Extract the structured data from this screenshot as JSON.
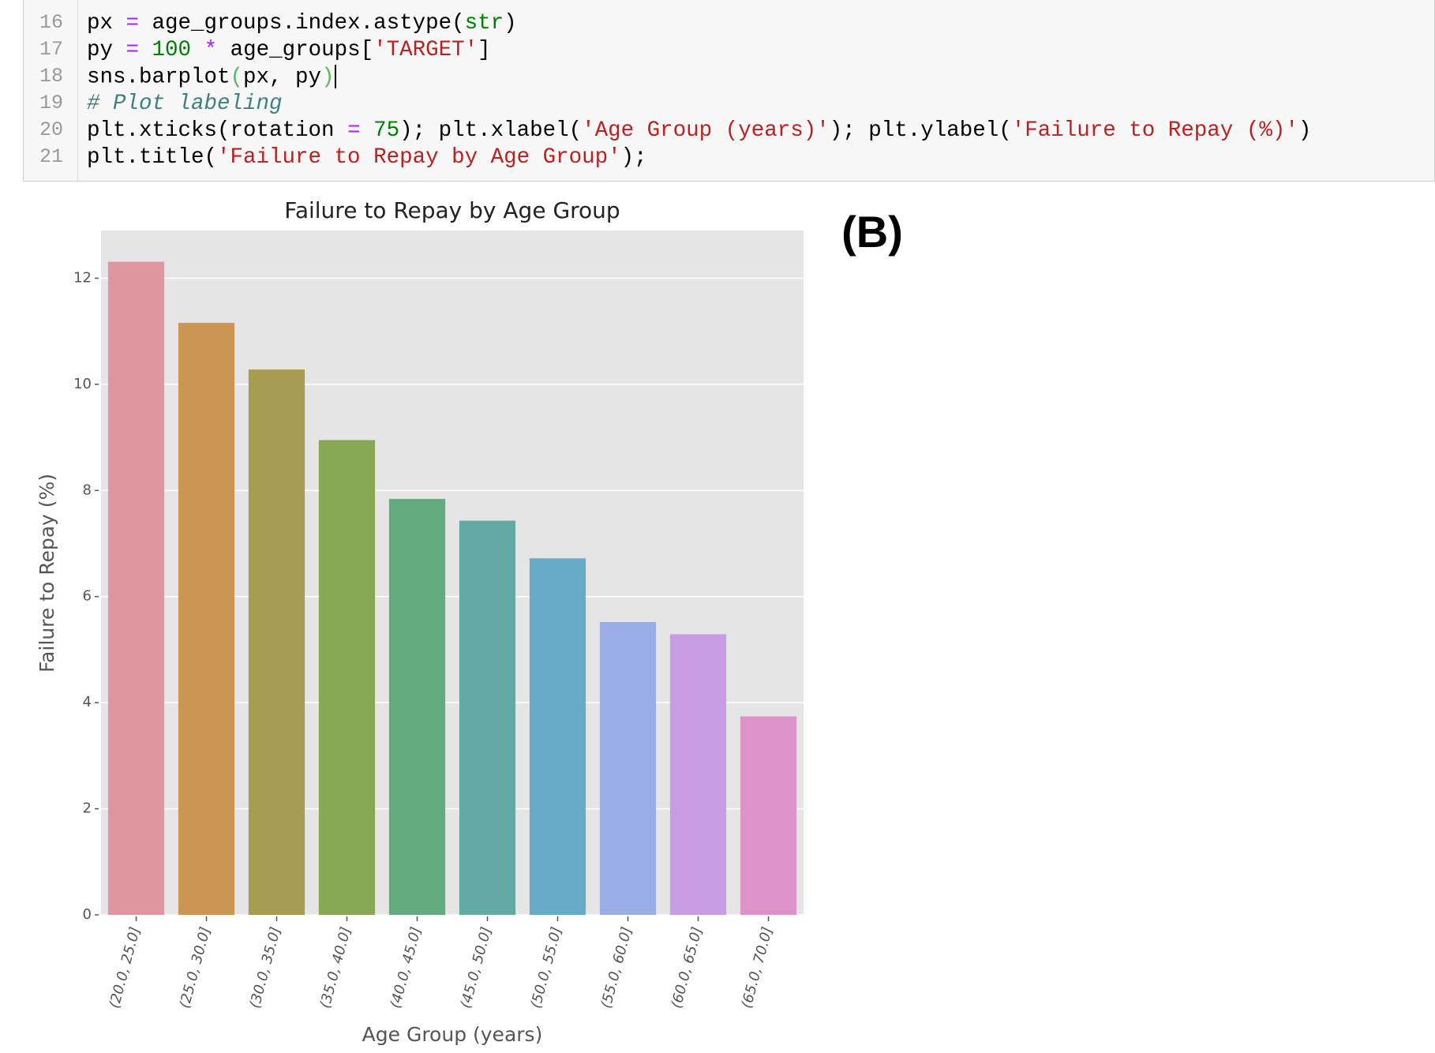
{
  "code_cell": {
    "lines": [
      {
        "number": "16",
        "tokens": [
          {
            "text": "px ",
            "color": "#000000"
          },
          {
            "text": "=",
            "color": "#aa22ff"
          },
          {
            "text": " age_groups.index.astype(",
            "color": "#000000"
          },
          {
            "text": "str",
            "color": "#008000"
          },
          {
            "text": ")",
            "color": "#000000"
          }
        ]
      },
      {
        "number": "17",
        "tokens": [
          {
            "text": "py ",
            "color": "#000000"
          },
          {
            "text": "=",
            "color": "#aa22ff"
          },
          {
            "text": " ",
            "color": "#000000"
          },
          {
            "text": "100",
            "color": "#008000"
          },
          {
            "text": " ",
            "color": "#000000"
          },
          {
            "text": "*",
            "color": "#aa22ff"
          },
          {
            "text": " age_groups[",
            "color": "#000000"
          },
          {
            "text": "'TARGET'",
            "color": "#ba2121"
          },
          {
            "text": "]",
            "color": "#000000"
          }
        ]
      },
      {
        "number": "18",
        "tokens": [
          {
            "text": "sns.barplot",
            "color": "#000000"
          },
          {
            "text": "(",
            "color": "#5fb85f"
          },
          {
            "text": "px, py",
            "color": "#000000"
          },
          {
            "text": ")",
            "color": "#5fb85f"
          }
        ]
      },
      {
        "number": "19",
        "tokens": [
          {
            "text": "# Plot labeling",
            "color": "#408080",
            "style": "italic"
          }
        ]
      },
      {
        "number": "20",
        "tokens": [
          {
            "text": "plt.xticks(rotation ",
            "color": "#000000"
          },
          {
            "text": "=",
            "color": "#aa22ff"
          },
          {
            "text": " ",
            "color": "#000000"
          },
          {
            "text": "75",
            "color": "#008000"
          },
          {
            "text": "); plt.xlabel(",
            "color": "#000000"
          },
          {
            "text": "'Age Group (years)'",
            "color": "#ba2121"
          },
          {
            "text": "); plt.ylabel(",
            "color": "#000000"
          },
          {
            "text": "'Failure to Repay (%)'",
            "color": "#ba2121"
          },
          {
            "text": ")",
            "color": "#000000"
          }
        ]
      },
      {
        "number": "21",
        "tokens": [
          {
            "text": "plt.title(",
            "color": "#000000"
          },
          {
            "text": "'Failure to Repay by Age Group'",
            "color": "#ba2121"
          },
          {
            "text": ");",
            "color": "#000000"
          }
        ]
      }
    ]
  },
  "panel_label": "(B)",
  "chart_data": {
    "type": "bar",
    "title": "Failure to Repay by Age Group",
    "xlabel": "Age Group (years)",
    "ylabel": "Failure to Repay (%)",
    "categories": [
      "(20.0, 25.0]",
      "(25.0, 30.0]",
      "(30.0, 35.0]",
      "(35.0, 40.0]",
      "(40.0, 45.0]",
      "(45.0, 50.0]",
      "(50.0, 55.0]",
      "(55.0, 60.0]",
      "(60.0, 65.0]",
      "(65.0, 70.0]"
    ],
    "values": [
      12.31,
      11.16,
      10.28,
      8.95,
      7.84,
      7.43,
      6.72,
      5.52,
      5.29,
      3.74
    ],
    "colors": [
      "#df969f",
      "#cd9554",
      "#a89c52",
      "#88a855",
      "#63aa7e",
      "#63aaa5",
      "#67abc8",
      "#9aaee5",
      "#c89de4",
      "#dd92c8"
    ],
    "ylim": [
      0,
      12.9
    ],
    "yticks": [
      0,
      2,
      4,
      6,
      8,
      10,
      12
    ],
    "grid": true,
    "background": "#e5e5e5"
  }
}
